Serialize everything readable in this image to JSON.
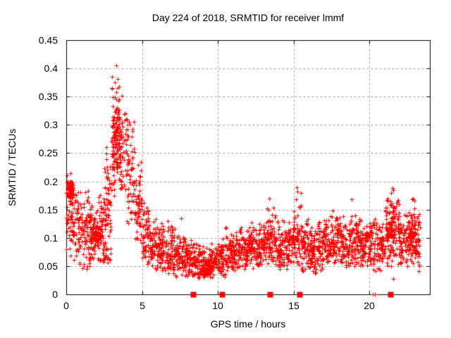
{
  "chart_data": {
    "type": "scatter",
    "title": "Day 224 of 2018, SRMTID for receiver lmmf",
    "xlabel": "GPS time / hours",
    "ylabel": "SRMTID / TECUs",
    "xlim": [
      0,
      24
    ],
    "ylim": [
      0,
      0.45
    ],
    "xticks": [
      {
        "value": 0,
        "label": "0"
      },
      {
        "value": 5,
        "label": "5"
      },
      {
        "value": 10,
        "label": "10"
      },
      {
        "value": 15,
        "label": "15"
      },
      {
        "value": 20,
        "label": "20"
      }
    ],
    "yticks": [
      {
        "value": 0,
        "label": "0"
      },
      {
        "value": 0.05,
        "label": "0.05"
      },
      {
        "value": 0.1,
        "label": "0.1"
      },
      {
        "value": 0.15,
        "label": "0.15"
      },
      {
        "value": 0.2,
        "label": "0.2"
      },
      {
        "value": 0.25,
        "label": "0.25"
      },
      {
        "value": 0.3,
        "label": "0.3"
      },
      {
        "value": 0.35,
        "label": "0.35"
      },
      {
        "value": 0.4,
        "label": "0.4"
      },
      {
        "value": 0.45,
        "label": "0.45"
      }
    ],
    "grid": "dashed",
    "legend": "none",
    "colors": {
      "marker": "#ff0000",
      "grid": "#9e9e9e",
      "frame": "#000000",
      "background": "#ffffff"
    },
    "series": [
      {
        "name": "srmtid-plus-markers",
        "marker": "plus",
        "bins_format": [
          "x_start",
          "x_end",
          "y_center",
          "y_sigma",
          "y_min",
          "y_max",
          "n_points"
        ],
        "envelope_bins": [
          [
            0.0,
            0.5,
            0.14,
            0.045,
            0.055,
            0.22,
            58
          ],
          [
            0.5,
            1.0,
            0.12,
            0.04,
            0.05,
            0.21,
            58
          ],
          [
            1.0,
            1.5,
            0.105,
            0.04,
            0.04,
            0.2,
            58
          ],
          [
            1.5,
            2.0,
            0.1,
            0.035,
            0.04,
            0.19,
            58
          ],
          [
            2.0,
            2.5,
            0.115,
            0.035,
            0.05,
            0.2,
            58
          ],
          [
            2.5,
            3.0,
            0.17,
            0.05,
            0.065,
            0.3,
            58
          ],
          [
            3.0,
            3.5,
            0.28,
            0.055,
            0.15,
            0.405,
            68
          ],
          [
            3.5,
            4.0,
            0.25,
            0.05,
            0.16,
            0.36,
            60
          ],
          [
            4.0,
            4.5,
            0.22,
            0.045,
            0.12,
            0.31,
            58
          ],
          [
            4.5,
            5.0,
            0.15,
            0.04,
            0.08,
            0.25,
            58
          ],
          [
            5.0,
            5.5,
            0.1,
            0.03,
            0.05,
            0.17,
            58
          ],
          [
            5.5,
            6.0,
            0.085,
            0.025,
            0.04,
            0.14,
            58
          ],
          [
            6.0,
            6.5,
            0.08,
            0.025,
            0.04,
            0.132,
            58
          ],
          [
            6.5,
            7.0,
            0.075,
            0.022,
            0.035,
            0.13,
            58
          ],
          [
            7.0,
            7.5,
            0.07,
            0.022,
            0.03,
            0.12,
            58
          ],
          [
            7.5,
            8.0,
            0.065,
            0.02,
            0.03,
            0.112,
            58
          ],
          [
            8.0,
            8.5,
            0.06,
            0.02,
            0.03,
            0.1,
            58
          ],
          [
            8.5,
            9.0,
            0.055,
            0.018,
            0.028,
            0.095,
            58
          ],
          [
            9.0,
            9.5,
            0.048,
            0.015,
            0.025,
            0.085,
            54
          ],
          [
            9.5,
            10.0,
            0.055,
            0.018,
            0.03,
            0.09,
            54
          ],
          [
            10.0,
            10.5,
            0.065,
            0.02,
            0.03,
            0.105,
            58
          ],
          [
            10.5,
            11.0,
            0.075,
            0.022,
            0.04,
            0.12,
            58
          ],
          [
            11.0,
            11.5,
            0.075,
            0.02,
            0.04,
            0.115,
            58
          ],
          [
            11.5,
            12.0,
            0.08,
            0.022,
            0.04,
            0.12,
            58
          ],
          [
            12.0,
            12.5,
            0.085,
            0.022,
            0.045,
            0.13,
            58
          ],
          [
            12.5,
            13.0,
            0.08,
            0.022,
            0.045,
            0.125,
            58
          ],
          [
            13.0,
            13.5,
            0.09,
            0.03,
            0.05,
            0.17,
            58
          ],
          [
            13.5,
            14.0,
            0.09,
            0.028,
            0.05,
            0.16,
            58
          ],
          [
            14.0,
            14.5,
            0.08,
            0.025,
            0.04,
            0.135,
            58
          ],
          [
            14.5,
            15.0,
            0.085,
            0.027,
            0.04,
            0.15,
            58
          ],
          [
            15.0,
            15.5,
            0.1,
            0.035,
            0.05,
            0.19,
            58
          ],
          [
            15.5,
            16.0,
            0.08,
            0.025,
            0.04,
            0.135,
            58
          ],
          [
            16.0,
            16.5,
            0.075,
            0.025,
            0.035,
            0.125,
            58
          ],
          [
            16.5,
            17.0,
            0.08,
            0.025,
            0.04,
            0.13,
            58
          ],
          [
            17.0,
            17.5,
            0.09,
            0.025,
            0.05,
            0.14,
            58
          ],
          [
            17.5,
            18.0,
            0.095,
            0.027,
            0.05,
            0.155,
            58
          ],
          [
            18.0,
            18.5,
            0.085,
            0.025,
            0.045,
            0.14,
            58
          ],
          [
            18.5,
            19.0,
            0.09,
            0.03,
            0.05,
            0.17,
            58
          ],
          [
            19.0,
            19.5,
            0.09,
            0.026,
            0.05,
            0.145,
            58
          ],
          [
            19.5,
            20.0,
            0.085,
            0.025,
            0.05,
            0.13,
            58
          ],
          [
            20.0,
            20.5,
            0.09,
            0.027,
            0.04,
            0.145,
            58
          ],
          [
            20.5,
            21.0,
            0.085,
            0.026,
            0.04,
            0.135,
            58
          ],
          [
            21.0,
            21.5,
            0.11,
            0.035,
            0.05,
            0.185,
            58
          ],
          [
            21.5,
            22.0,
            0.12,
            0.035,
            0.028,
            0.19,
            58
          ],
          [
            22.0,
            22.5,
            0.1,
            0.03,
            0.05,
            0.155,
            58
          ],
          [
            22.5,
            23.0,
            0.1,
            0.032,
            0.04,
            0.17,
            58
          ],
          [
            23.0,
            23.35,
            0.09,
            0.03,
            0.04,
            0.15,
            42
          ]
        ],
        "clusters_format": [
          "x_start",
          "x_end",
          "y_min",
          "y_max",
          "n_points"
        ],
        "clusters": [
          [
            0.05,
            0.45,
            0.17,
            0.2,
            75
          ],
          [
            1.6,
            2.3,
            0.09,
            0.12,
            55
          ],
          [
            2.4,
            2.95,
            0.055,
            0.095,
            25
          ],
          [
            3.05,
            3.6,
            0.22,
            0.33,
            60
          ],
          [
            9.0,
            9.6,
            0.035,
            0.06,
            35
          ],
          [
            21.1,
            21.7,
            0.1,
            0.17,
            40
          ],
          [
            22.6,
            23.1,
            0.07,
            0.13,
            40
          ]
        ],
        "notable_points": [
          [
            0.3,
            0.215
          ],
          [
            3.32,
            0.405
          ],
          [
            3.2,
            0.375
          ],
          [
            3.38,
            0.365
          ],
          [
            3.5,
            0.345
          ],
          [
            4.15,
            0.305
          ],
          [
            4.2,
            0.3
          ],
          [
            7.6,
            0.135
          ],
          [
            13.4,
            0.17
          ],
          [
            15.2,
            0.19
          ],
          [
            15.25,
            0.182
          ],
          [
            18.85,
            0.168
          ],
          [
            21.55,
            0.188
          ],
          [
            21.6,
            0.028
          ],
          [
            22.85,
            0.168
          ]
        ]
      },
      {
        "name": "flagged-zero-squares",
        "marker": "filled-square",
        "y": 0,
        "points_x": [
          8.36,
          10.27,
          13.43,
          15.39,
          21.4
        ]
      },
      {
        "name": "zero-plus-marks",
        "marker": "plus",
        "y": 0,
        "points_x": [
          20.25,
          20.38
        ]
      }
    ]
  }
}
